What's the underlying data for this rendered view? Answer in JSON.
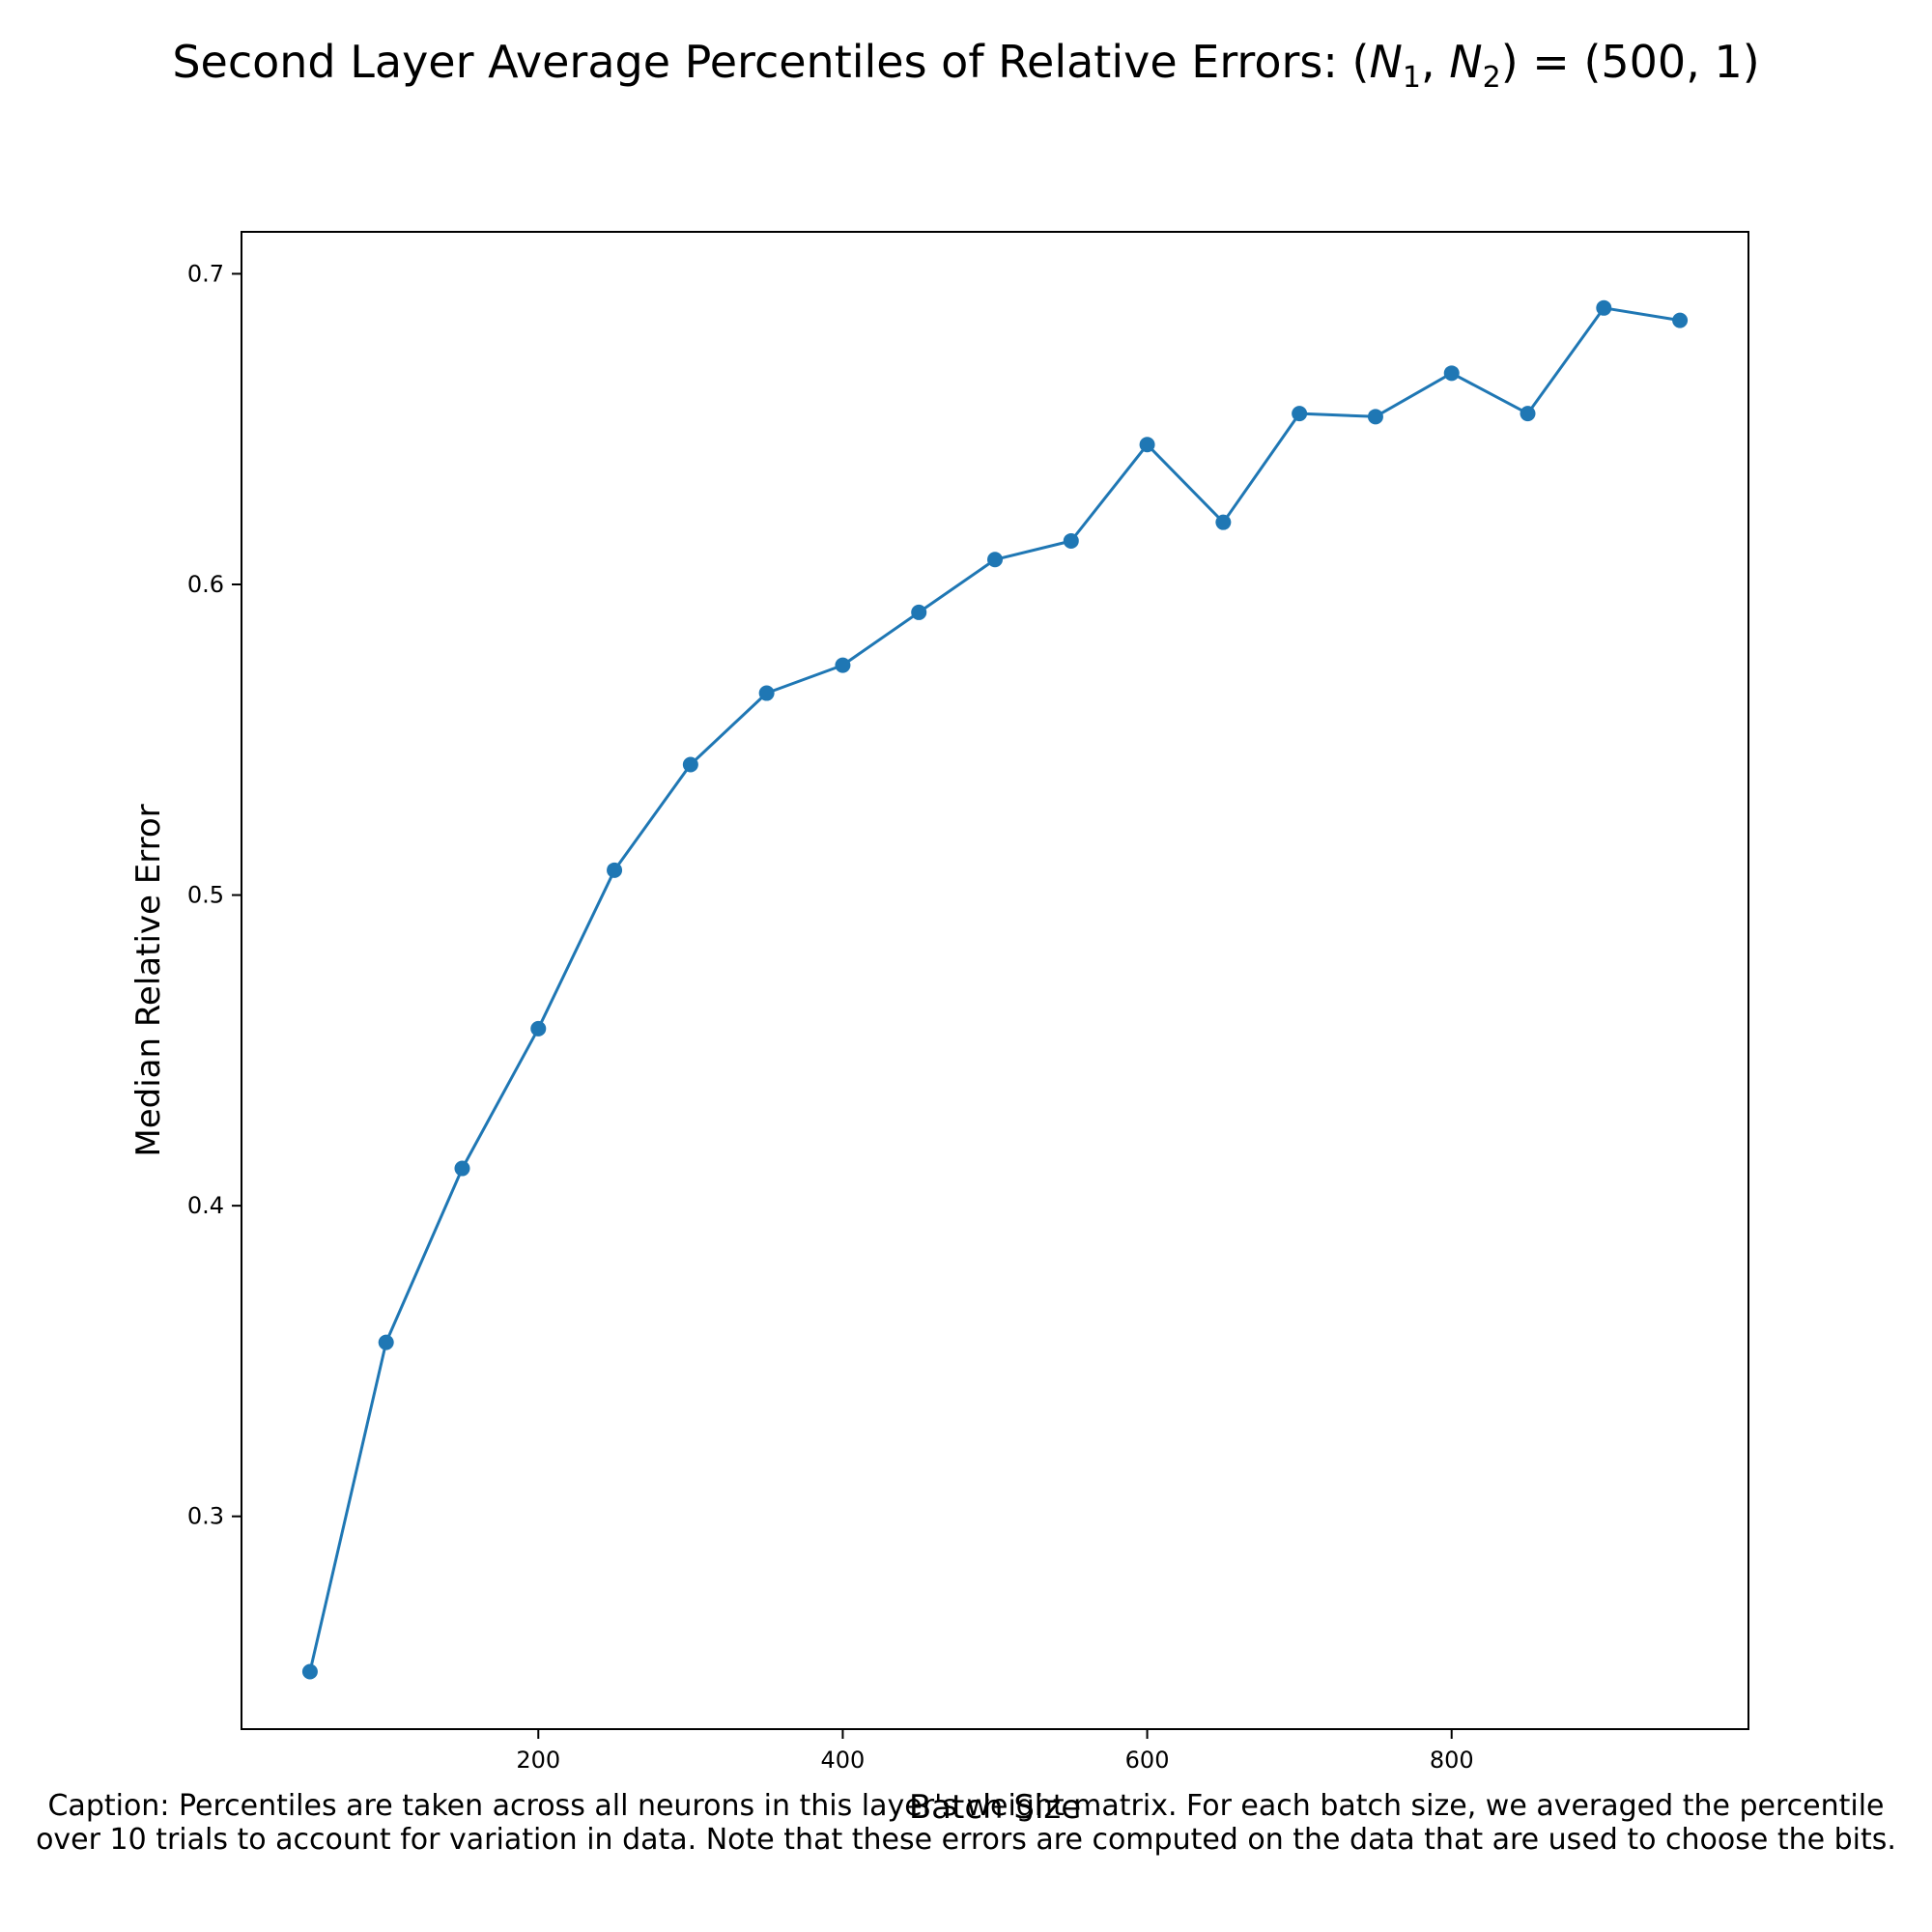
{
  "chart_data": {
    "type": "line",
    "title": "Second Layer Average Percentiles of Relative Errors: (N1, N2) = (500, 1)",
    "title_parts": {
      "prefix": "Second Layer Average Percentiles of Relative Errors: (",
      "n": "N",
      "sub1": "1",
      "comma": ", ",
      "sub2": "2",
      "suffix": ") = (500, 1)"
    },
    "xlabel": "Batch Size",
    "ylabel": "Median Relative Error",
    "xlim": [
      5,
      995
    ],
    "ylim": [
      0.2315,
      0.7135
    ],
    "xticks": [
      200,
      400,
      600,
      800
    ],
    "yticks": [
      0.3,
      0.4,
      0.5,
      0.6,
      0.7
    ],
    "grid": false,
    "legend": "none",
    "series": [
      {
        "color": "#1f77b4",
        "marker": "circle",
        "x": [
          50,
          100,
          150,
          200,
          250,
          300,
          350,
          400,
          450,
          500,
          550,
          600,
          650,
          700,
          750,
          800,
          850,
          900,
          950
        ],
        "y": [
          0.25,
          0.356,
          0.412,
          0.457,
          0.508,
          0.542,
          0.565,
          0.574,
          0.591,
          0.608,
          0.614,
          0.645,
          0.62,
          0.655,
          0.654,
          0.668,
          0.655,
          0.689,
          0.685
        ]
      }
    ]
  },
  "caption": "Caption: Percentiles are taken across all neurons in this layer's weight matrix. For each batch size, we averaged the percentile over 10 trials to account for variation in data. Note that these errors are computed on the data that are used to choose the bits."
}
